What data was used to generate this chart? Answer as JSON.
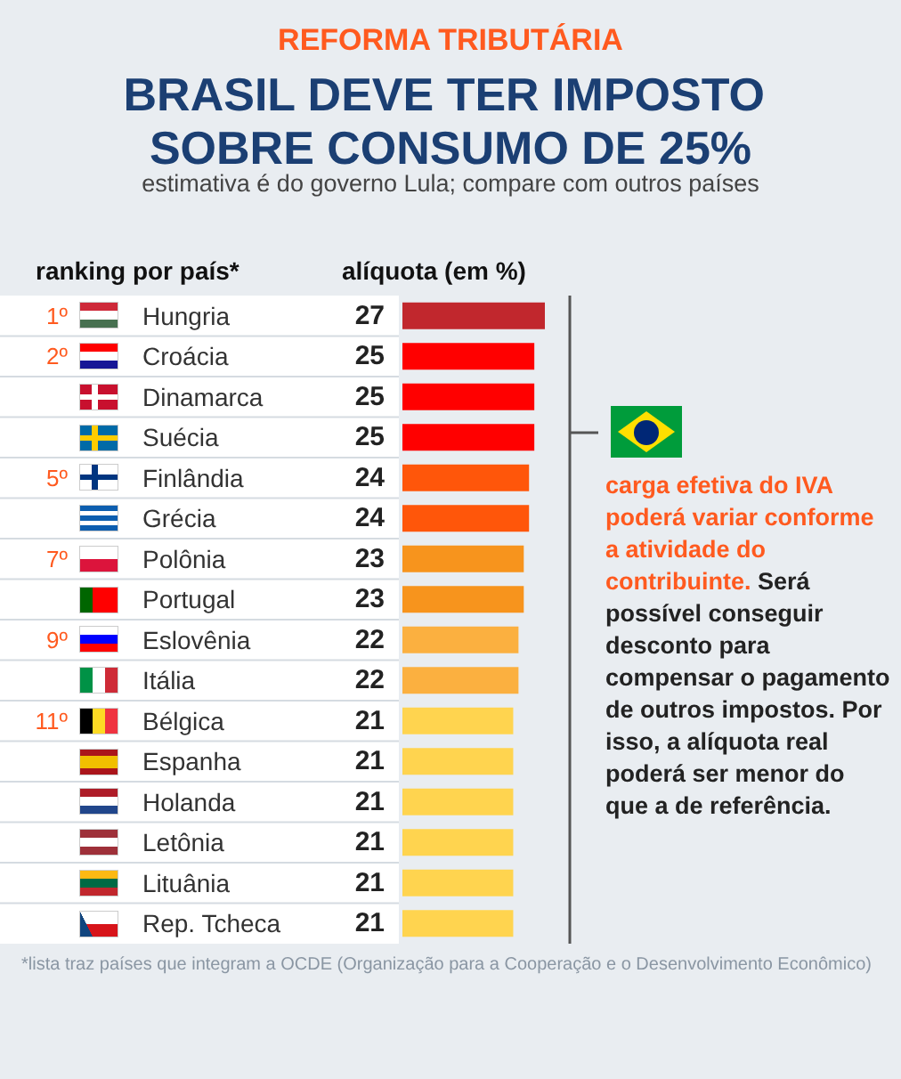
{
  "chart_data": {
    "type": "bar",
    "orientation": "horizontal",
    "title": "BRASIL DEVE TER IMPOSTO SOBRE CONSUMO DE 25%",
    "subtitle": "estimativa é do governo Lula; compare com outros países",
    "ylabel": "ranking por país*",
    "xlabel": "alíquota (em %)",
    "categories": [
      "Hungria",
      "Croácia",
      "Dinamarca",
      "Suécia",
      "Finlândia",
      "Grécia",
      "Polônia",
      "Portugal",
      "Eslovênia",
      "Itália",
      "Bélgica",
      "Espanha",
      "Holanda",
      "Letônia",
      "Lituânia",
      "Rep. Tcheca"
    ],
    "values": [
      27,
      25,
      25,
      25,
      24,
      24,
      23,
      23,
      22,
      22,
      21,
      21,
      21,
      21,
      21,
      21
    ],
    "colors": [
      "#c1272d",
      "#ff0000",
      "#ff0000",
      "#ff0000",
      "#ff560a",
      "#ff560a",
      "#f7941d",
      "#f7941d",
      "#fbb040",
      "#fbb040",
      "#ffd44f",
      "#ffd44f",
      "#ffd44f",
      "#ffd44f",
      "#ffd44f",
      "#ffd44f"
    ],
    "data_labels": true,
    "annotations": [
      "REFORMA TRIBUTÁRIA",
      "carga efetiva do IVA poderá variar conforme a atividade do contribuinte.",
      "Será possível conseguir desconto para compensar o pagamento de outros impostos. Por isso, a alíquota real poderá ser menor do que a de referência.",
      "*lista traz países que integram a OCDE (Organização para a Cooperação e o Desenvolvimento Econômico)",
      "1º",
      "2º",
      "5º",
      "7º",
      "9º",
      "11º"
    ]
  }
}
